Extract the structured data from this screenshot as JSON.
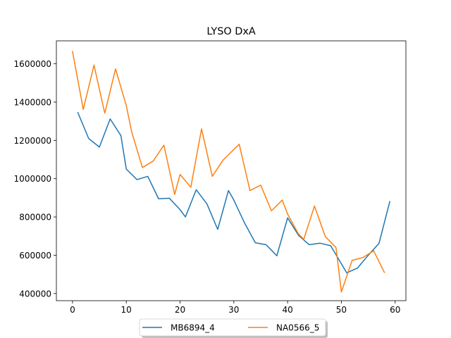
{
  "chart_data": {
    "type": "line",
    "title": "LYSO DxA",
    "xlabel": "",
    "ylabel": "",
    "xlim": [
      -3,
      62
    ],
    "ylim": [
      362500,
      1720000
    ],
    "xticks": [
      0,
      10,
      20,
      30,
      40,
      50,
      60
    ],
    "yticks": [
      400000,
      600000,
      800000,
      1000000,
      1200000,
      1400000,
      1600000
    ],
    "grid": false,
    "legend_position": "bottom-center",
    "series": [
      {
        "name": "MB6894_4",
        "color": "#1f77b4",
        "x": [
          1,
          3,
          5,
          7,
          9,
          10,
          12,
          14,
          16,
          18,
          20,
          21,
          23,
          25,
          27,
          29,
          30,
          32,
          34,
          36,
          38,
          40,
          42,
          44,
          46,
          48,
          51,
          53,
          55,
          57,
          59
        ],
        "y": [
          1345000,
          1210000,
          1165000,
          1312000,
          1225000,
          1050000,
          995000,
          1012000,
          895000,
          898000,
          838000,
          800000,
          942000,
          868000,
          735000,
          938000,
          888000,
          768000,
          665000,
          655000,
          597000,
          795000,
          705000,
          655000,
          663000,
          650000,
          508000,
          533000,
          600000,
          662000,
          880000
        ]
      },
      {
        "name": "NA0566_5",
        "color": "#ff7f0e",
        "x": [
          0,
          2,
          4,
          6,
          8,
          10,
          11,
          13,
          15,
          17,
          19,
          20,
          22,
          24,
          26,
          28,
          31,
          33,
          35,
          37,
          39,
          40,
          42,
          43,
          45,
          47,
          49,
          50,
          52,
          54,
          56,
          58
        ],
        "y": [
          1665000,
          1362000,
          1593000,
          1342000,
          1573000,
          1382000,
          1245000,
          1058000,
          1092000,
          1175000,
          918000,
          1022000,
          955000,
          1260000,
          1012000,
          1097000,
          1180000,
          938000,
          966000,
          832000,
          888000,
          815000,
          712000,
          683000,
          857000,
          698000,
          640000,
          408000,
          573000,
          588000,
          623000,
          510000
        ]
      }
    ]
  }
}
